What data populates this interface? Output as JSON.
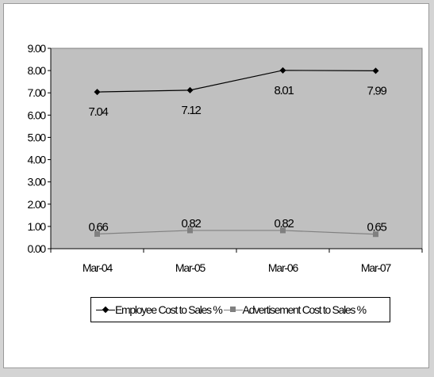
{
  "chart_data": {
    "type": "line",
    "categories": [
      "Mar-04",
      "Mar-05",
      "Mar-06",
      "Mar-07"
    ],
    "series": [
      {
        "name": "Employee Cost to Sales %",
        "values": [
          7.04,
          7.12,
          8.01,
          7.99
        ],
        "labels": [
          "7.04",
          "7.12",
          "8.01",
          "7.99"
        ],
        "color": "#000000",
        "marker": "diamond"
      },
      {
        "name": "Advertisement Cost to Sales %",
        "values": [
          0.66,
          0.82,
          0.82,
          0.65
        ],
        "labels": [
          "0.66",
          "0.82",
          "0.82",
          "0.65"
        ],
        "color": "#808080",
        "marker": "square"
      }
    ],
    "yticks": [
      "0.00",
      "1.00",
      "2.00",
      "3.00",
      "4.00",
      "5.00",
      "6.00",
      "7.00",
      "8.00",
      "9.00"
    ],
    "ylim": [
      0,
      9
    ],
    "plot_background": "#c0c0c0",
    "legend_position": "bottom"
  }
}
